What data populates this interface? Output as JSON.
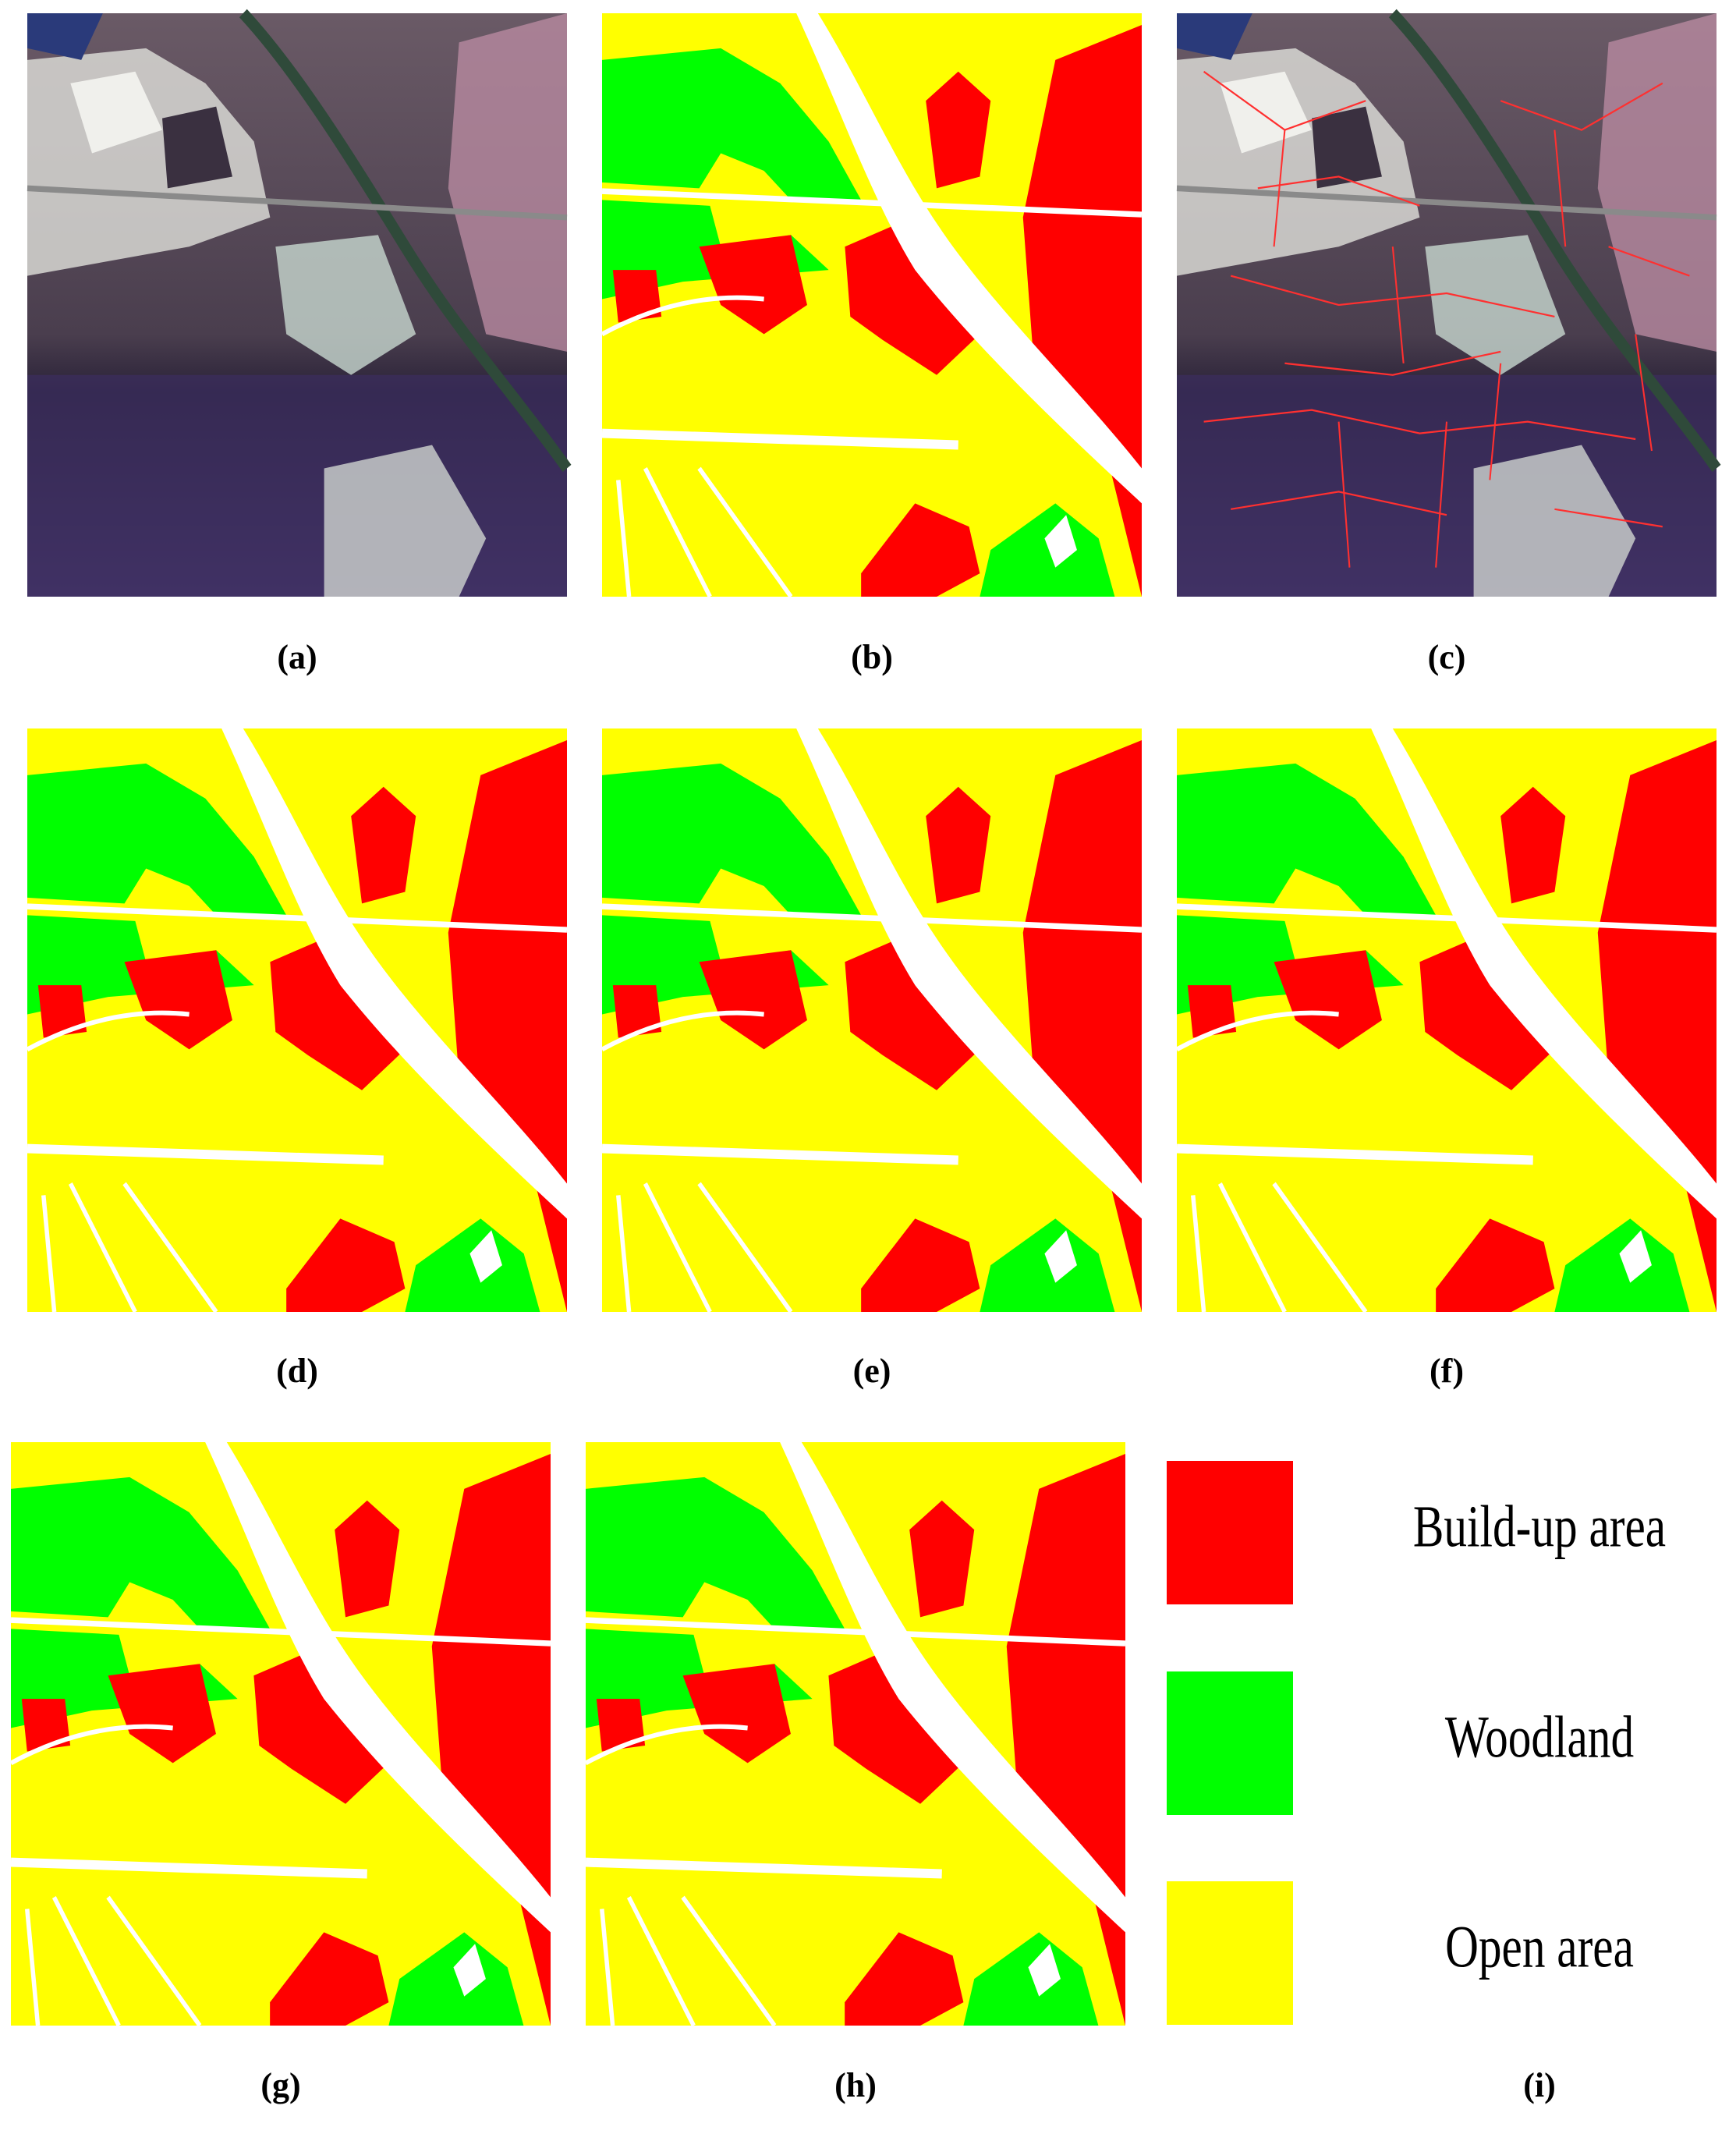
{
  "panels": [
    {
      "label": "(a)"
    },
    {
      "label": "(b)"
    },
    {
      "label": "(c)"
    },
    {
      "label": "(d)"
    },
    {
      "label": "(e)"
    },
    {
      "label": "(f)"
    },
    {
      "label": "(g)"
    },
    {
      "label": "(h)"
    },
    {
      "label": "(i)"
    }
  ],
  "legend": [
    {
      "label": "Build-up area",
      "color": "#ff0000"
    },
    {
      "label": "Woodland",
      "color": "#00ff00"
    },
    {
      "label": "Open area",
      "color": "#ffff00"
    }
  ]
}
